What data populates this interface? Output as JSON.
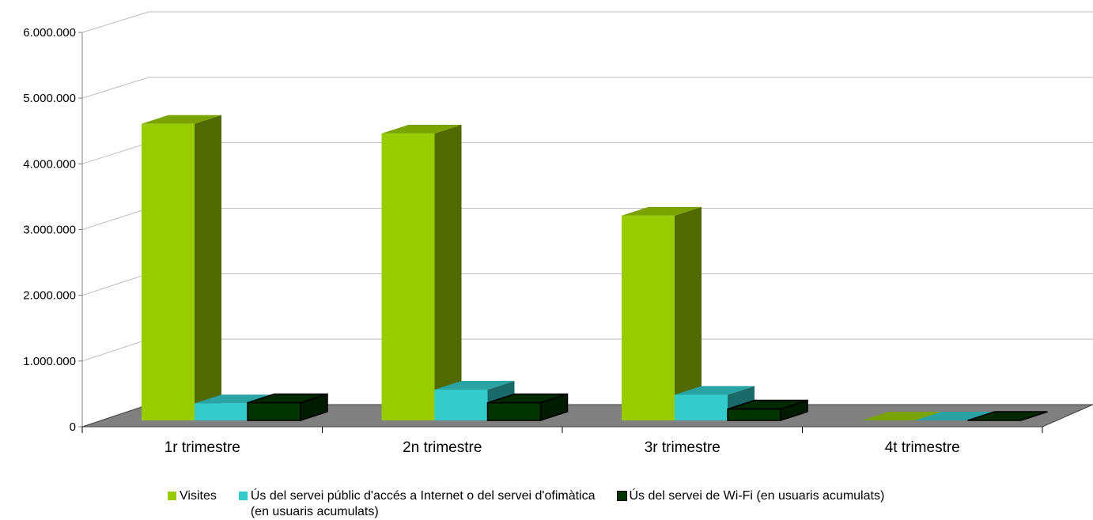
{
  "chart_data": {
    "type": "bar",
    "title": "",
    "xlabel": "",
    "ylabel": "",
    "categories": [
      "1r trimestre",
      "2n trimestre",
      "3r trimestre",
      "4t trimestre"
    ],
    "ylim": [
      0,
      6000000
    ],
    "yticks": [
      {
        "value": 0,
        "label": "0"
      },
      {
        "value": 1000000,
        "label": "1.000.000"
      },
      {
        "value": 2000000,
        "label": "2.000.000"
      },
      {
        "value": 3000000,
        "label": "3.000.000"
      },
      {
        "value": 4000000,
        "label": "4.000.000"
      },
      {
        "value": 5000000,
        "label": "5.000.000"
      },
      {
        "value": 6000000,
        "label": "6.000.000"
      }
    ],
    "grid": true,
    "style": "3d-columns",
    "legend_position": "bottom",
    "series": [
      {
        "name": "Visites",
        "color": "#99cc00",
        "values": [
          5200000,
          5030000,
          3590000,
          0
        ]
      },
      {
        "name": "Ús del servei públic d'accés a Internet o del servei d'ofimàtica (en usuaris acumulats)",
        "color": "#33cccc",
        "values": [
          300000,
          540000,
          450000,
          0
        ]
      },
      {
        "name": "Ús del servei de Wi-Fi (en usuaris acumulats)",
        "color": "#003300",
        "values": [
          310000,
          310000,
          200000,
          0
        ]
      }
    ],
    "legend": [
      {
        "label_line1": "Visites",
        "label_line2": ""
      },
      {
        "label_line1": "Ús del servei públic d'accés a Internet o del servei d'ofimàtica",
        "label_line2": "(en usuaris acumulats)"
      },
      {
        "label_line1": "Ús del servei de Wi-Fi (en usuaris acumulats)",
        "label_line2": ""
      }
    ]
  }
}
